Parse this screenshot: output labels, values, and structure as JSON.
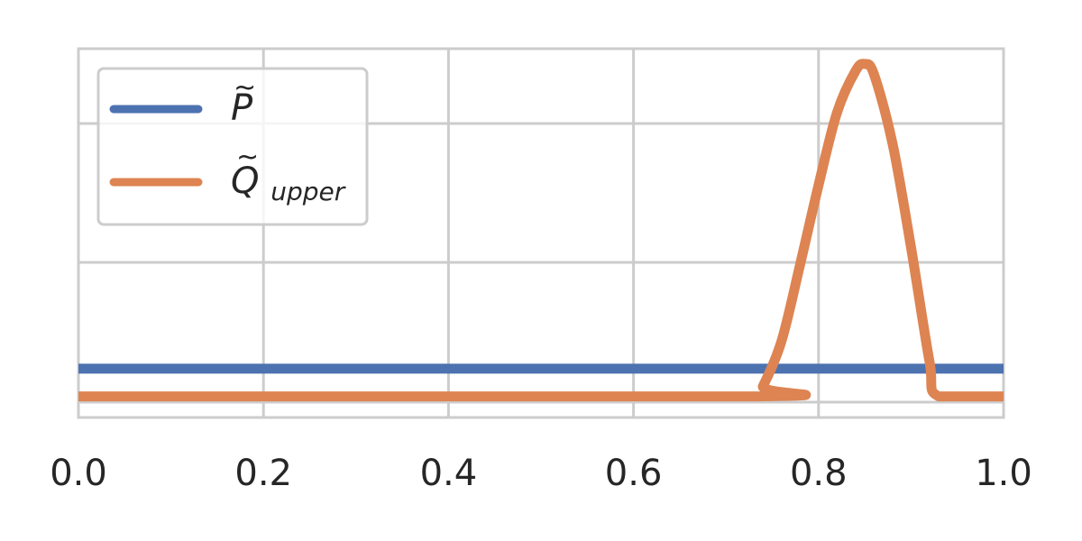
{
  "chart_data": {
    "type": "line",
    "xlim": [
      0,
      1
    ],
    "ylim": [
      0,
      1
    ],
    "x_ticks": [
      "0.0",
      "0.2",
      "0.4",
      "0.6",
      "0.8",
      "1.0"
    ],
    "y_tick_labels": [],
    "grid": true,
    "legend_position": "top-left",
    "series": [
      {
        "name": "P",
        "name_accent": "~",
        "color": "#4c72b0",
        "x": [
          0.0,
          1.0
        ],
        "y": [
          0.12,
          0.12
        ]
      },
      {
        "name": "Q",
        "name_accent": "~",
        "name_subscript": "upper",
        "color": "#dd8452",
        "x": [
          0.0,
          0.73,
          0.74,
          0.76,
          0.78,
          0.8,
          0.82,
          0.84,
          0.85,
          0.86,
          0.88,
          0.9,
          0.92,
          0.93,
          1.0
        ],
        "y": [
          0.04,
          0.04,
          0.07,
          0.2,
          0.42,
          0.65,
          0.86,
          0.98,
          1.0,
          0.97,
          0.77,
          0.47,
          0.14,
          0.04,
          0.04
        ]
      }
    ]
  }
}
